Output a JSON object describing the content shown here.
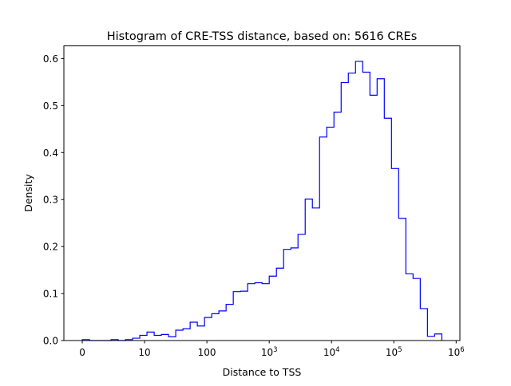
{
  "chart_data": {
    "type": "histogram",
    "title": "Histogram of CRE-TSS distance, based on: 5616 CREs",
    "xlabel": "Distance to TSS",
    "ylabel": "Density",
    "x_scale": "log10(distance+1)",
    "xlim": [
      -0.295,
      6.06
    ],
    "ylim": [
      0,
      0.627
    ],
    "grid": false,
    "line_color": "#0000ff",
    "bin_start": 0,
    "bin_width": 0.1154,
    "values": [
      0.002,
      0,
      0,
      0,
      0.002,
      0,
      0.002,
      0.005,
      0.011,
      0.018,
      0.011,
      0.013,
      0.008,
      0.022,
      0.025,
      0.039,
      0.031,
      0.049,
      0.057,
      0.063,
      0.077,
      0.104,
      0.105,
      0.121,
      0.123,
      0.121,
      0.137,
      0.154,
      0.194,
      0.197,
      0.226,
      0.301,
      0.282,
      0.433,
      0.454,
      0.486,
      0.549,
      0.569,
      0.594,
      0.571,
      0.522,
      0.557,
      0.473,
      0.366,
      0.26,
      0.142,
      0.132,
      0.068,
      0.009,
      0.014
    ],
    "x_ticks": [
      {
        "pos": 0,
        "label": "0",
        "exp": ""
      },
      {
        "pos": 1,
        "label": "10",
        "exp": ""
      },
      {
        "pos": 2,
        "label": "100",
        "exp": ""
      },
      {
        "pos": 3,
        "label": "10",
        "exp": "3"
      },
      {
        "pos": 4,
        "label": "10",
        "exp": "4"
      },
      {
        "pos": 5,
        "label": "10",
        "exp": "5"
      },
      {
        "pos": 6,
        "label": "10",
        "exp": "6"
      }
    ],
    "y_ticks": [
      {
        "value": 0,
        "label": "0.0"
      },
      {
        "value": 0.1,
        "label": "0.1"
      },
      {
        "value": 0.2,
        "label": "0.2"
      },
      {
        "value": 0.3,
        "label": "0.3"
      },
      {
        "value": 0.4,
        "label": "0.4"
      },
      {
        "value": 0.5,
        "label": "0.5"
      },
      {
        "value": 0.6,
        "label": "0.6"
      }
    ]
  }
}
